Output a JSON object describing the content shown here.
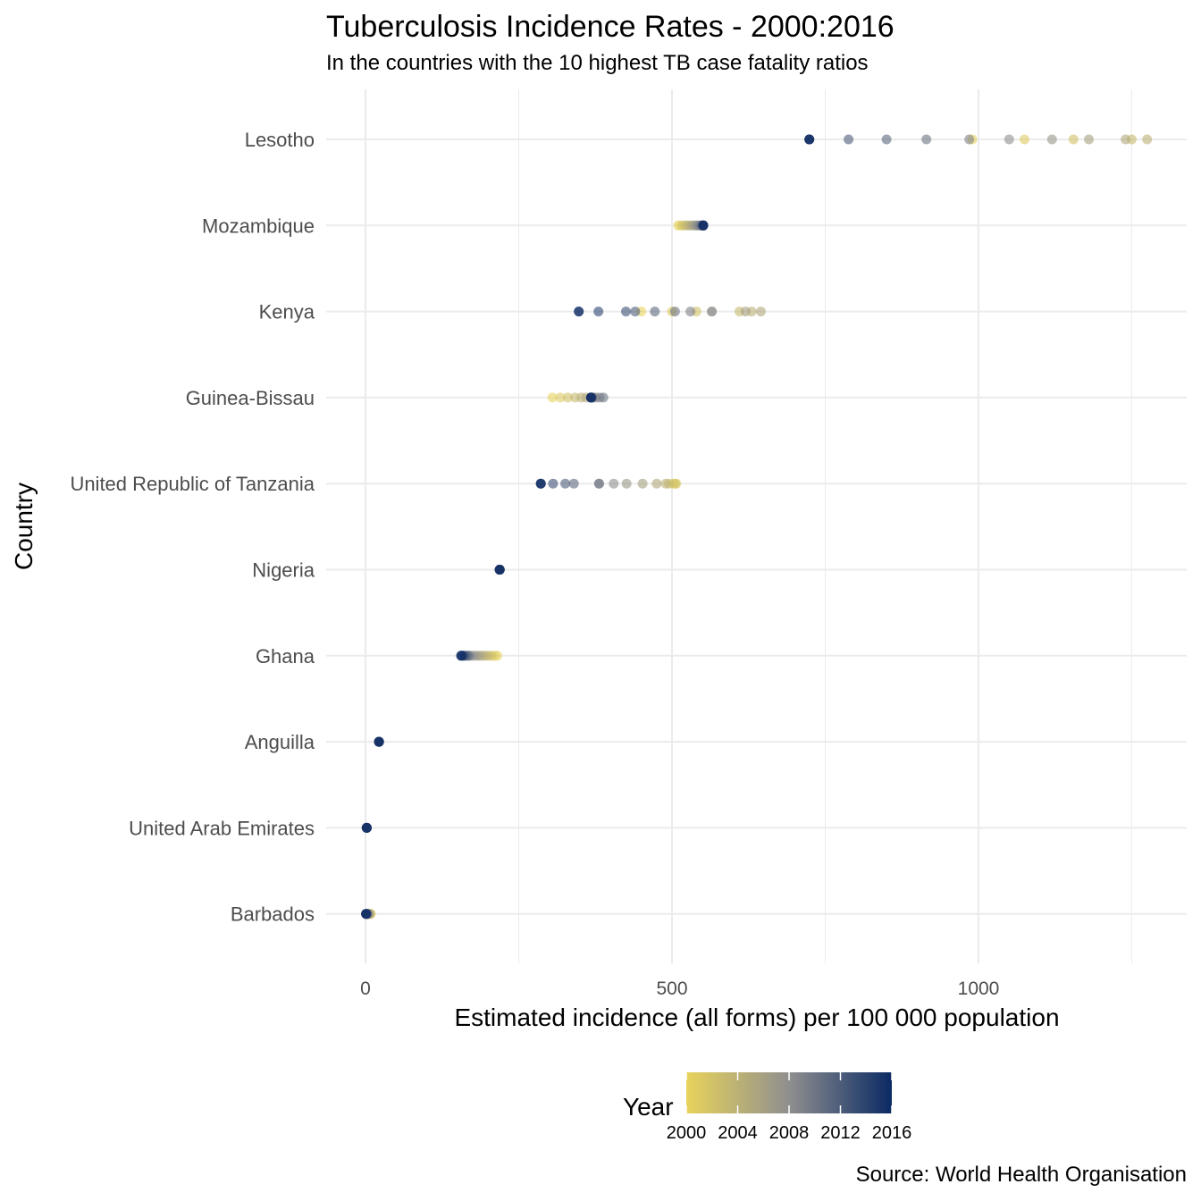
{
  "chart_data": {
    "type": "scatter",
    "title": "Tuberculosis Incidence Rates - 2000:2016",
    "subtitle": "In the countries with the 10 highest TB case fatality ratios",
    "xlabel": "Estimated incidence (all forms) per 100 000 population",
    "ylabel": "Country",
    "caption": "Source: World Health Organisation",
    "xlim": [
      -60,
      1345
    ],
    "x_ticks": [
      0,
      500,
      1000
    ],
    "x_tick_labels": [
      "0",
      "500",
      "1000"
    ],
    "grid": true,
    "categories": [
      "Lesotho",
      "Mozambique",
      "Kenya",
      "Guinea-Bissau",
      "United Republic of Tanzania",
      "Nigeria",
      "Ghana",
      "Anguilla",
      "United Arab Emirates",
      "Barbados"
    ],
    "years": [
      2000,
      2001,
      2002,
      2003,
      2004,
      2005,
      2006,
      2007,
      2008,
      2009,
      2010,
      2011,
      2012,
      2013,
      2014,
      2015,
      2016
    ],
    "series": [
      {
        "category": "Lesotho",
        "values": [
          990,
          1075,
          1155,
          1250,
          1275,
          1240,
          1180,
          1120,
          1050,
          985,
          915,
          850,
          788,
          724,
          724,
          724,
          724
        ]
      },
      {
        "category": "Mozambique",
        "values": [
          510,
          514,
          518,
          522,
          526,
          530,
          534,
          538,
          541,
          544,
          547,
          549,
          551,
          551,
          551,
          551,
          551
        ]
      },
      {
        "category": "Kenya",
        "values": [
          450,
          500,
          540,
          610,
          630,
          645,
          620,
          565,
          565,
          530,
          505,
          472,
          440,
          425,
          380,
          348,
          348
        ]
      },
      {
        "category": "Guinea-Bissau",
        "values": [
          305,
          318,
          330,
          342,
          352,
          360,
          368,
          372,
          376,
          382,
          388,
          370,
          368,
          368,
          368,
          368,
          368
        ]
      },
      {
        "category": "United Republic of Tanzania",
        "values": [
          502,
          507,
          505,
          495,
          490,
          475,
          452,
          426,
          405,
          381,
          381,
          340,
          326,
          306,
          286,
          286,
          286
        ]
      },
      {
        "category": "Nigeria",
        "values": [
          219,
          219,
          219,
          219,
          219,
          219,
          219,
          219,
          219,
          219,
          219,
          219,
          219,
          219,
          219,
          219,
          219
        ]
      },
      {
        "category": "Ghana",
        "values": [
          215,
          210,
          205,
          200,
          195,
          190,
          185,
          180,
          175,
          170,
          168,
          165,
          162,
          160,
          158,
          156,
          156
        ]
      },
      {
        "category": "Anguilla",
        "values": [
          22,
          22,
          22,
          22,
          22,
          22,
          22,
          22,
          22,
          22,
          22,
          22,
          22,
          22,
          22,
          22,
          22
        ]
      },
      {
        "category": "United Arab Emirates",
        "values": [
          2,
          2,
          2,
          2,
          2,
          2,
          2,
          2,
          2,
          2,
          2,
          2,
          2,
          2,
          2,
          2,
          2
        ]
      },
      {
        "category": "Barbados",
        "values": [
          5,
          9,
          6,
          7,
          4,
          6,
          3,
          5,
          2,
          3,
          1,
          2,
          1,
          1,
          1,
          1,
          1
        ]
      }
    ],
    "legend": {
      "title": "Year",
      "position": "bottom",
      "ticks": [
        2000,
        2004,
        2008,
        2012,
        2016
      ],
      "colors": [
        "#e8d35b",
        "#8f8f8f",
        "#0b2a64"
      ]
    }
  }
}
